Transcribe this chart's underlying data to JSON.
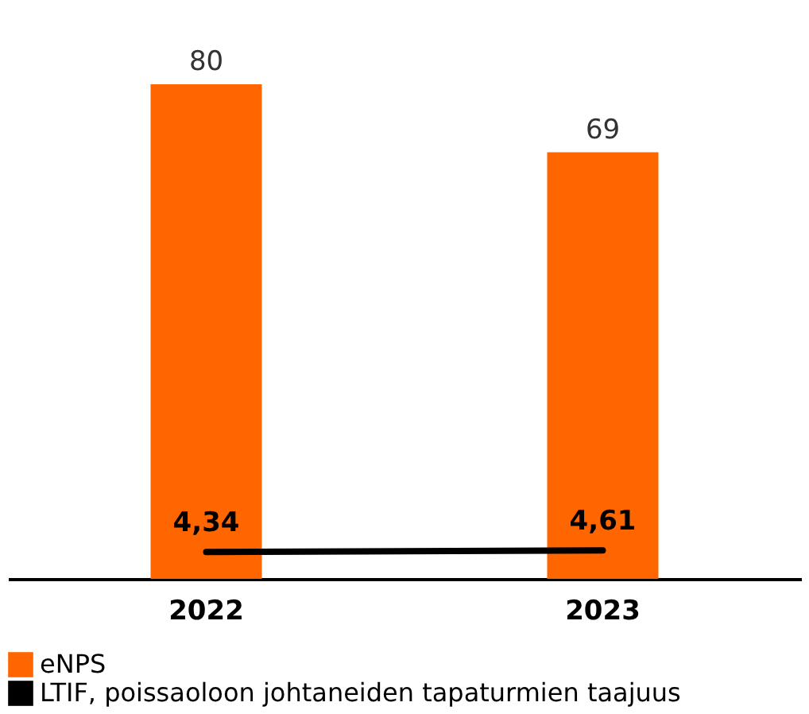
{
  "chart_data": {
    "type": "bar",
    "categories": [
      "2022",
      "2023"
    ],
    "legend": "bottom",
    "series": [
      {
        "name": "eNPS",
        "color": "#ff6600",
        "values": [
          80,
          69
        ],
        "value_labels": [
          "80",
          "69"
        ]
      },
      {
        "name": "LTIF, poissaoloon johtaneiden tapaturmien taajuus",
        "type": "line",
        "color": "#000000",
        "values": [
          4.34,
          4.61
        ],
        "value_labels": [
          "4,34",
          "4,61"
        ]
      }
    ]
  }
}
